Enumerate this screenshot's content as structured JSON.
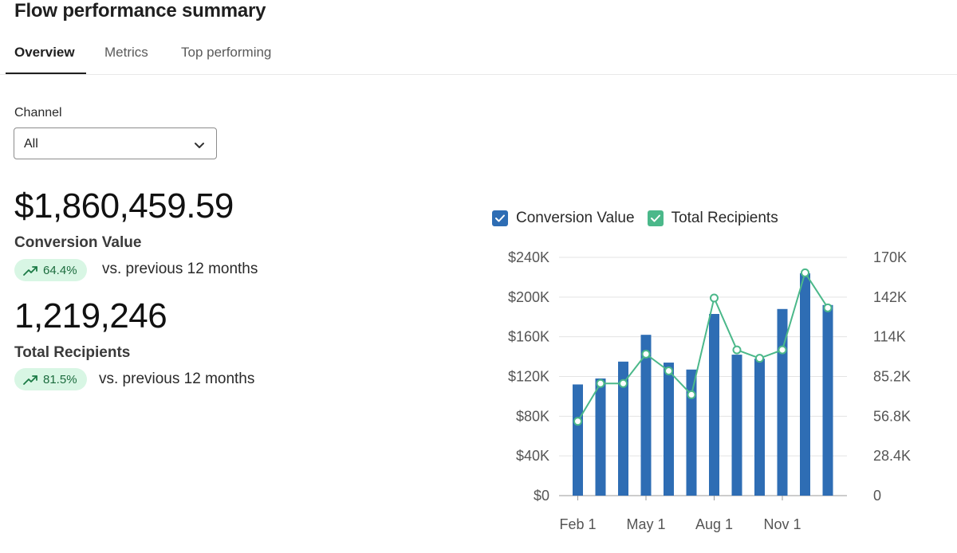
{
  "header": {
    "title": "Flow performance summary"
  },
  "tabs": [
    {
      "label": "Overview",
      "active": true
    },
    {
      "label": "Metrics",
      "active": false
    },
    {
      "label": "Top performing",
      "active": false
    }
  ],
  "filter": {
    "label": "Channel",
    "value": "All"
  },
  "metrics": {
    "conversion": {
      "value": "$1,860,459.59",
      "label": "Conversion Value",
      "change": "64.4%",
      "compare": "vs. previous 12 months"
    },
    "recipients": {
      "value": "1,219,246",
      "label": "Total Recipients",
      "change": "81.5%",
      "compare": "vs. previous 12 months"
    }
  },
  "colors": {
    "bar": "#2e6db4",
    "line": "#4bb88a",
    "legend_check_blue": "#2e6db4",
    "legend_check_green": "#4bb88a",
    "pill_bg": "#d8f6e4",
    "pill_text": "#1b6b3d"
  },
  "chart_data": {
    "type": "bar",
    "legend": [
      "Conversion Value",
      "Total Recipients"
    ],
    "x_tick_labels": [
      "Feb 1",
      "May 1",
      "Aug 1",
      "Nov 1"
    ],
    "y_left_ticks": [
      "$0",
      "$40K",
      "$80K",
      "$120K",
      "$160K",
      "$200K",
      "$240K"
    ],
    "y_right_ticks": [
      "0",
      "28.4K",
      "56.8K",
      "85.2K",
      "114K",
      "142K",
      "170K"
    ],
    "y_left_range": [
      0,
      240000
    ],
    "y_right_range": [
      0,
      170000
    ],
    "grid": true,
    "series": [
      {
        "name": "Conversion Value",
        "type": "bar",
        "axis": "left",
        "values": [
          112000,
          118000,
          135000,
          162000,
          134000,
          127000,
          183000,
          142000,
          138000,
          188000,
          224000,
          192000
        ]
      },
      {
        "name": "Total Recipients",
        "type": "line",
        "axis": "right",
        "values": [
          53000,
          80000,
          80000,
          101000,
          89000,
          72000,
          141000,
          104000,
          98000,
          104000,
          159000,
          134000
        ]
      }
    ]
  }
}
